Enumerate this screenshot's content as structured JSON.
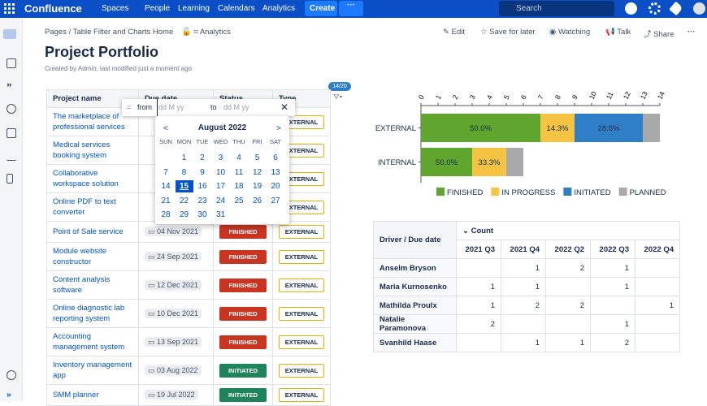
{
  "nav": {
    "logo": "Confluence",
    "items": [
      "Spaces",
      "People",
      "Learning",
      "Calendars",
      "Analytics"
    ],
    "create": "Create",
    "search": "Search"
  },
  "breadcrumb": [
    "Pages",
    "Table Filter and Charts Home"
  ],
  "breadcrumb_app": "Analytics",
  "actions": [
    "Edit",
    "Save for later",
    "Watching",
    "Talk",
    "Share"
  ],
  "title": "Project Portfolio",
  "byline": "Created by Admin, last modified just a moment ago",
  "filter_badge": "14/20",
  "table": {
    "headers": [
      "Project name",
      "Due date",
      "Status",
      "Type"
    ],
    "rows": [
      [
        "The marketplace of professional services",
        null,
        null,
        "EXTERNAL"
      ],
      [
        "Medical services booking system",
        null,
        null,
        "EXTERNAL"
      ],
      [
        "Collaborative workspace solution",
        null,
        null,
        "EXTERNAL"
      ],
      [
        "Online PDF to text converter",
        null,
        null,
        "EXTERNAL"
      ],
      [
        "Point of Sale service",
        "04 Nov 2021",
        "FINISHED",
        "EXTERNAL"
      ],
      [
        "Module website constructor",
        "24 Sep 2021",
        "FINISHED",
        "EXTERNAL"
      ],
      [
        "Content analysis software",
        "12 Dec 2021",
        "FINISHED",
        "EXTERNAL"
      ],
      [
        "Online diagnostic lab reporting system",
        "10 Dec 2021",
        "FINISHED",
        "EXTERNAL"
      ],
      [
        "Accounting management system",
        "13 Sep 2021",
        "FINISHED",
        "EXTERNAL"
      ],
      [
        "Inventory management app",
        "03 Aug 2022",
        "INITIATED",
        "EXTERNAL"
      ],
      [
        "SMM planner",
        "19 Jul 2022",
        "INITIATED",
        "EXTERNAL"
      ]
    ]
  },
  "date_filter": {
    "operator": "=",
    "from": "from",
    "from_placeholder": "dd M yy",
    "to": "to",
    "to_placeholder": "dd M yy"
  },
  "calendar": {
    "month": "August 2022",
    "prev": "<",
    "next": ">",
    "weekdays": [
      "SUN",
      "MON",
      "TUE",
      "WED",
      "THU",
      "FRI",
      "SAT"
    ],
    "weeks": [
      [
        null,
        1,
        2,
        3,
        4,
        5,
        6
      ],
      [
        7,
        8,
        9,
        10,
        11,
        12,
        13
      ],
      [
        14,
        15,
        16,
        17,
        18,
        19,
        20
      ],
      [
        21,
        22,
        23,
        24,
        25,
        26,
        27
      ],
      [
        28,
        29,
        30,
        31,
        null,
        null,
        null
      ]
    ],
    "selected": 15
  },
  "chart_data": {
    "type": "stacked_bar_horizontal",
    "categories": [
      "EXTERNAL",
      "INTERNAL"
    ],
    "series": [
      {
        "name": "FINISHED",
        "color": "#5fa52e",
        "values": [
          7,
          3
        ],
        "percent_labels": [
          "50.0%",
          "50.0%"
        ]
      },
      {
        "name": "IN PROGRESS",
        "color": "#f6c343",
        "values": [
          2,
          2
        ],
        "percent_labels": [
          "14.3%",
          "33.3%"
        ]
      },
      {
        "name": "INITIATED",
        "color": "#2f7fc6",
        "values": [
          4,
          0
        ],
        "percent_labels": [
          "28.6%",
          null
        ]
      },
      {
        "name": "PLANNED",
        "color": "#a8a9ab",
        "values": [
          1,
          1
        ],
        "percent_labels": [
          null,
          null
        ]
      }
    ],
    "xlim": [
      0,
      14
    ],
    "xticks": [
      0,
      1,
      2,
      3,
      4,
      5,
      6,
      7,
      8,
      9,
      10,
      11,
      12,
      13,
      14
    ],
    "legend": "bottom"
  },
  "pivot": {
    "row_header": "Driver / Due date",
    "measure": "Count",
    "columns": [
      "2021 Q3",
      "2021 Q4",
      "2022 Q2",
      "2022 Q3",
      "2022 Q4"
    ],
    "rows": [
      {
        "name": "Anselm Bryson",
        "values": [
          null,
          1,
          2,
          1,
          null
        ]
      },
      {
        "name": "Maria Kurnosenko",
        "values": [
          1,
          1,
          null,
          1,
          null
        ]
      },
      {
        "name": "Mathilda Proulx",
        "values": [
          1,
          2,
          2,
          null,
          1
        ]
      },
      {
        "name": "Natalie Paramonova",
        "values": [
          2,
          null,
          null,
          1,
          null
        ]
      },
      {
        "name": "Svanhild Haase",
        "values": [
          null,
          1,
          1,
          2,
          null
        ]
      }
    ]
  }
}
